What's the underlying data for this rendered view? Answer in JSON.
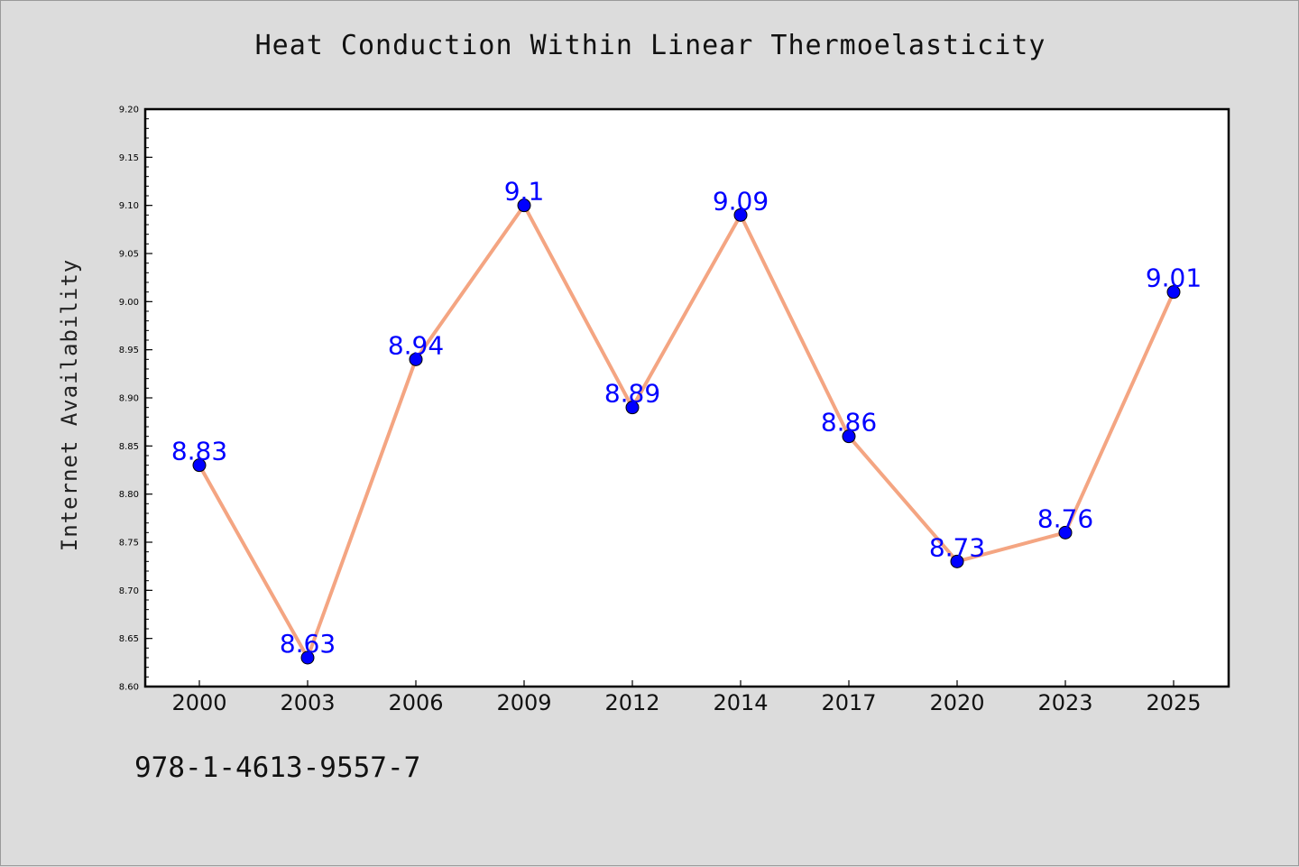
{
  "chart_data": {
    "type": "line",
    "title": "Heat Conduction Within Linear Thermoelasticity",
    "xlabel": "",
    "ylabel": "Internet Availability",
    "categories": [
      "2000",
      "2003",
      "2006",
      "2009",
      "2012",
      "2014",
      "2017",
      "2020",
      "2023",
      "2025"
    ],
    "values": [
      8.83,
      8.63,
      8.94,
      9.1,
      8.89,
      9.09,
      8.86,
      8.73,
      8.76,
      9.01
    ],
    "data_labels": [
      "8.83",
      "8.63",
      "8.94",
      "9.1",
      "8.89",
      "9.09",
      "8.86",
      "8.73",
      "8.76",
      "9.01"
    ],
    "ylim": [
      8.6,
      9.2
    ],
    "yticks": [
      "8.60",
      "8.65",
      "8.70",
      "8.75",
      "8.80",
      "8.85",
      "8.90",
      "8.95",
      "9.00",
      "9.05",
      "9.10",
      "9.15",
      "9.20"
    ],
    "grid": false,
    "legend": "none",
    "colors": {
      "line": "#f4a582",
      "marker": "#0000ff",
      "label": "#0000ff",
      "background": "#dcdcdc",
      "plot_background": "#ffffff"
    }
  },
  "footer": {
    "isbn": "978-1-4613-9557-7"
  }
}
